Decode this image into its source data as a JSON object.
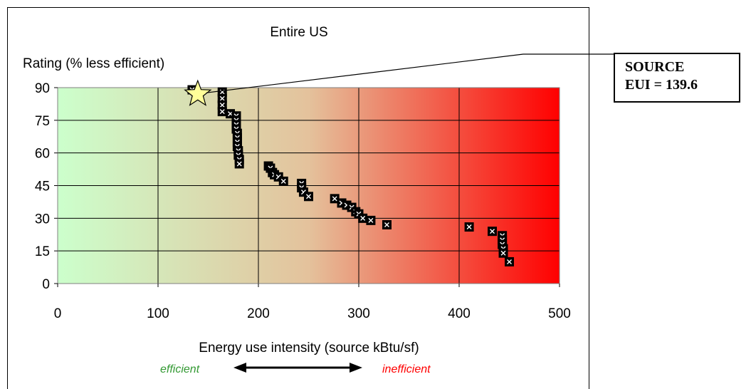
{
  "chart_data": {
    "type": "scatter",
    "title": "Entire US",
    "ylabel": "Rating (% less efficient)",
    "xlabel": "Energy use intensity (source kBtu/sf)",
    "xlim": [
      0,
      500
    ],
    "ylim": [
      0,
      90
    ],
    "x_ticks": [
      0,
      100,
      200,
      300,
      400,
      500
    ],
    "y_ticks": [
      0,
      15,
      30,
      45,
      60,
      75,
      90
    ],
    "grid": true,
    "background_gradient": {
      "start_color": "#ccffcc",
      "mid_color": "#e4c29c",
      "end_color": "#ff0000"
    },
    "series": [
      {
        "points": [
          [
            134,
            89
          ],
          [
            164,
            88
          ],
          [
            164,
            85
          ],
          [
            164,
            82
          ],
          [
            164,
            79
          ],
          [
            172,
            78
          ],
          [
            178,
            77
          ],
          [
            178,
            75
          ],
          [
            178,
            73
          ],
          [
            178,
            71
          ],
          [
            179,
            69
          ],
          [
            179,
            67
          ],
          [
            179,
            65
          ],
          [
            179,
            63
          ],
          [
            180,
            61
          ],
          [
            180,
            59
          ],
          [
            181,
            57
          ],
          [
            181,
            55
          ],
          [
            210,
            54
          ],
          [
            212,
            53
          ],
          [
            214,
            51
          ],
          [
            216,
            50
          ],
          [
            220,
            49
          ],
          [
            225,
            47
          ],
          [
            243,
            46
          ],
          [
            243,
            44
          ],
          [
            245,
            42
          ],
          [
            250,
            40
          ],
          [
            276,
            39
          ],
          [
            283,
            37
          ],
          [
            288,
            36
          ],
          [
            293,
            35
          ],
          [
            297,
            33
          ],
          [
            300,
            32
          ],
          [
            304,
            30
          ],
          [
            312,
            29
          ],
          [
            328,
            27
          ],
          [
            410,
            26
          ],
          [
            433,
            24
          ],
          [
            443,
            22
          ],
          [
            443,
            20
          ],
          [
            443,
            18
          ],
          [
            444,
            16
          ],
          [
            444,
            14
          ],
          [
            450,
            10
          ]
        ],
        "marker_color": "#000000",
        "marker_symbol_color": "#ffffff"
      }
    ],
    "highlight": {
      "x": 139.6,
      "y": 87,
      "marker": "star",
      "color": "#ffff99"
    },
    "annotation": {
      "lines": [
        "SOURCE",
        "EUI = 139.6"
      ]
    },
    "direction_labels": {
      "left": "efficient",
      "left_color": "#339933",
      "right": "inefficient",
      "right_color": "#ff0000"
    }
  }
}
